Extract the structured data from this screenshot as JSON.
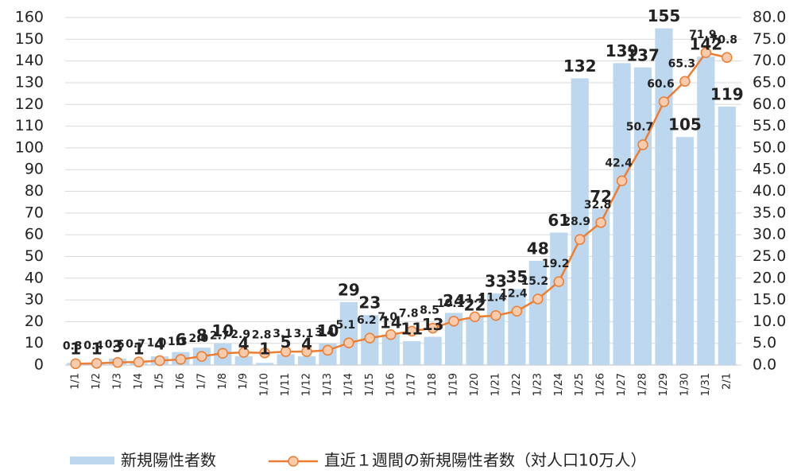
{
  "chart_data": {
    "type": "bar_line",
    "categories": [
      "1/1",
      "1/2",
      "1/3",
      "1/4",
      "1/5",
      "1/6",
      "1/7",
      "1/8",
      "1/9",
      "1/10",
      "1/11",
      "1/12",
      "1/13",
      "1/14",
      "1/15",
      "1/16",
      "1/17",
      "1/18",
      "1/19",
      "1/20",
      "1/21",
      "1/22",
      "1/23",
      "1/24",
      "1/25",
      "1/26",
      "1/27",
      "1/28",
      "1/29",
      "1/30",
      "1/31",
      "2/1"
    ],
    "series": [
      {
        "name": "新規陽性者数",
        "color": "#bdd7ee",
        "values": [
          1,
          1,
          3,
          1,
          4,
          6,
          8,
          10,
          4,
          1,
          5,
          4,
          10,
          29,
          23,
          14,
          11,
          13,
          24,
          22,
          33,
          35,
          48,
          61,
          132,
          72,
          139,
          137,
          155,
          105,
          142,
          119
        ]
      },
      {
        "name": "直近１週間の新規陽性者数（対人口10万人）",
        "color": "#ed7d31",
        "axis": "y2",
        "values": [
          0.3,
          0.4,
          0.6,
          0.7,
          1.0,
          1.3,
          2.0,
          2.7,
          2.9,
          2.8,
          3.1,
          3.1,
          3.4,
          5.1,
          6.2,
          7.0,
          7.8,
          8.5,
          10.1,
          11.1,
          11.4,
          12.4,
          15.2,
          19.2,
          28.9,
          32.8,
          42.4,
          50.7,
          60.6,
          65.3,
          71.9,
          70.8
        ],
        "value_labels": [
          "0.3",
          "0.4",
          "0.6",
          "0.7",
          "1.0",
          "1.3",
          "2.0",
          "2.7",
          "2.9",
          "2.8",
          "3.1",
          "3.1",
          "3.4",
          "5.1",
          "6.2",
          "7.0",
          "7.8",
          "8.5",
          "10.1",
          "11.1",
          "11.4",
          "12.4",
          "15.2",
          "19.2",
          "28.9",
          "32.8",
          "42.4",
          "50.7",
          "60.6",
          "65.3",
          "71.9",
          "70.8"
        ]
      }
    ],
    "ylim": [
      0,
      160
    ],
    "yticks": [
      0,
      10,
      20,
      30,
      40,
      50,
      60,
      70,
      80,
      90,
      100,
      110,
      120,
      130,
      140,
      150,
      160
    ],
    "y2lim": [
      0,
      80
    ],
    "y2ticks": [
      {
        "value": 0,
        "label": "0.0"
      },
      {
        "value": 5,
        "label": "5.0"
      },
      {
        "value": 10,
        "label": "10.0"
      },
      {
        "value": 15,
        "label": "15.0"
      },
      {
        "value": 20,
        "label": "20.0"
      },
      {
        "value": 25,
        "label": "25.0"
      },
      {
        "value": 30,
        "label": "30.0"
      },
      {
        "value": 35,
        "label": "35.0"
      },
      {
        "value": 40,
        "label": "40.0"
      },
      {
        "value": 45,
        "label": "45.0"
      },
      {
        "value": 50,
        "label": "50.0"
      },
      {
        "value": 55,
        "label": "55.0"
      },
      {
        "value": 60,
        "label": "60.0"
      },
      {
        "value": 65,
        "label": "65.0"
      },
      {
        "value": 70,
        "label": "70.0"
      },
      {
        "value": 75,
        "label": "75.0"
      },
      {
        "value": 80,
        "label": "80.0"
      }
    ],
    "grid": true,
    "legend": "bottom"
  }
}
